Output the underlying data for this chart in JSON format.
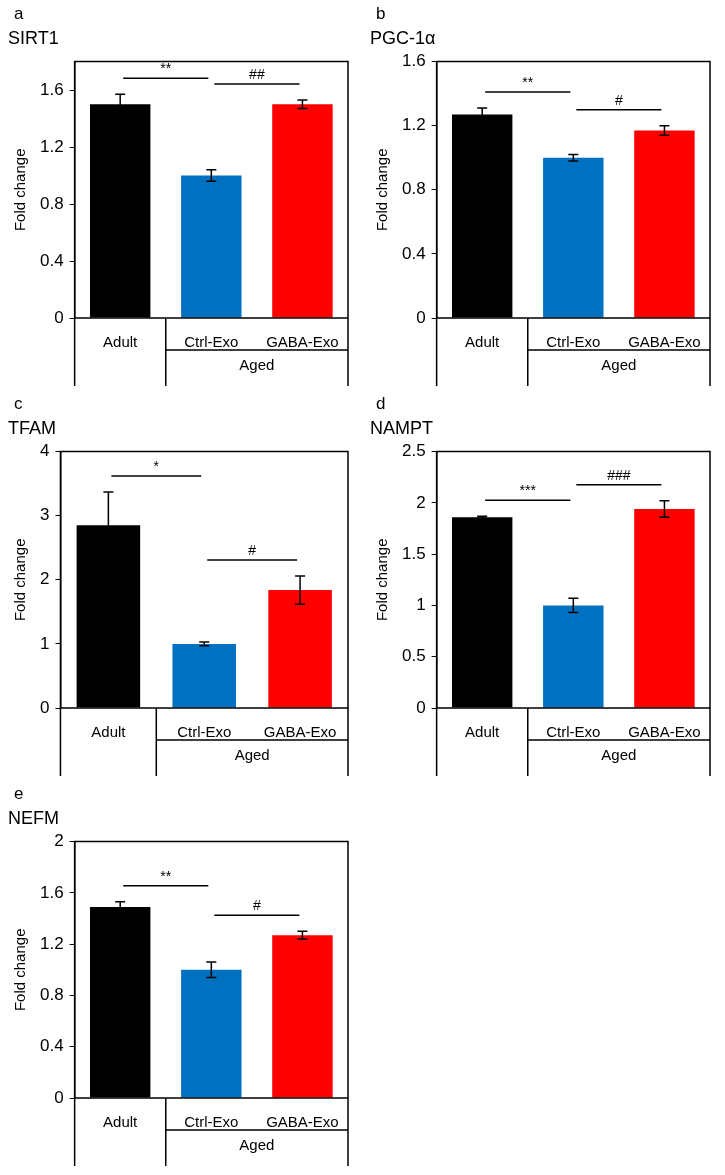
{
  "chart_data": [
    {
      "type": "bar",
      "title": "SIRT1",
      "ylabel": "Fold change",
      "categories": [
        "Adult",
        "Ctrl-Exo",
        "GABA-Exo"
      ],
      "values": [
        1.5,
        1.0,
        1.5
      ],
      "errors": [
        0.07,
        0.04,
        0.03
      ],
      "colors": [
        "#000000",
        "#0070c0",
        "#ff0000"
      ],
      "ylim": [
        0,
        1.8
      ],
      "yticks": [
        0,
        0.4,
        0.8,
        1.2,
        1.6
      ],
      "annotations": [
        "a",
        "**",
        "##",
        "Aged"
      ]
    },
    {
      "type": "bar",
      "title": "PGC-1α",
      "ylabel": "Fold change",
      "categories": [
        "Adult",
        "Ctrl-Exo",
        "GABA-Exo"
      ],
      "values": [
        1.27,
        1.0,
        1.17
      ],
      "errors": [
        0.04,
        0.02,
        0.03
      ],
      "colors": [
        "#000000",
        "#0070c0",
        "#ff0000"
      ],
      "ylim": [
        0,
        1.6
      ],
      "yticks": [
        0,
        0.4,
        0.8,
        1.2,
        1.6
      ],
      "annotations": [
        "b",
        "**",
        "#",
        "Aged"
      ]
    },
    {
      "type": "bar",
      "title": "TFAM",
      "ylabel": "Fold change",
      "categories": [
        "Adult",
        "Ctrl-Exo",
        "GABA-Exo"
      ],
      "values": [
        2.85,
        1.0,
        1.84
      ],
      "errors": [
        0.52,
        0.03,
        0.22
      ],
      "colors": [
        "#000000",
        "#0070c0",
        "#ff0000"
      ],
      "ylim": [
        0,
        4
      ],
      "yticks": [
        0,
        1,
        2,
        3,
        4
      ],
      "annotations": [
        "c",
        "*",
        "#",
        "Aged"
      ]
    },
    {
      "type": "bar",
      "title": "NAMPT",
      "ylabel": "Fold change",
      "categories": [
        "Adult",
        "Ctrl-Exo",
        "GABA-Exo"
      ],
      "values": [
        1.86,
        1.0,
        1.94
      ],
      "errors": [
        0.01,
        0.07,
        0.08
      ],
      "colors": [
        "#000000",
        "#0070c0",
        "#ff0000"
      ],
      "ylim": [
        0,
        2.5
      ],
      "yticks": [
        0,
        0.5,
        1,
        1.5,
        2,
        2.5
      ],
      "annotations": [
        "d",
        "***",
        "###",
        "Aged"
      ]
    },
    {
      "type": "bar",
      "title": "NEFM",
      "ylabel": "Fold change",
      "categories": [
        "Adult",
        "Ctrl-Exo",
        "GABA-Exo"
      ],
      "values": [
        1.49,
        1.0,
        1.27
      ],
      "errors": [
        0.04,
        0.06,
        0.03
      ],
      "colors": [
        "#000000",
        "#0070c0",
        "#ff0000"
      ],
      "ylim": [
        0,
        2
      ],
      "yticks": [
        0,
        0.4,
        0.8,
        1.2,
        1.6,
        2
      ],
      "annotations": [
        "e",
        "**",
        "#",
        "Aged"
      ]
    }
  ]
}
